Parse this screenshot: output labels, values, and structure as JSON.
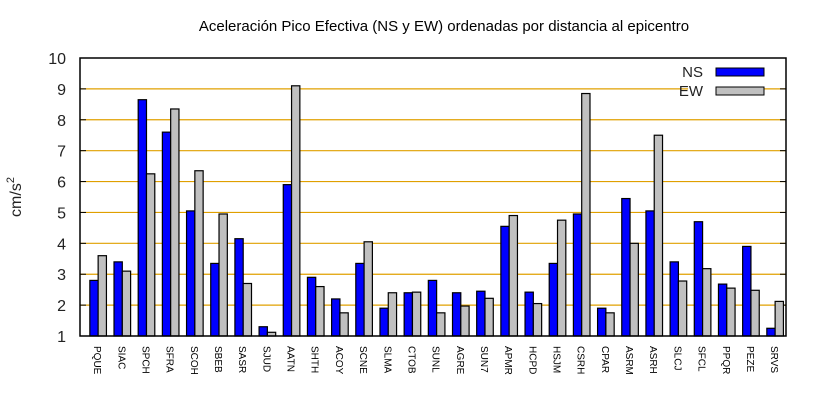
{
  "chart_data": {
    "type": "bar",
    "title": "Aceleración Pico Efectiva (NS y EW) ordenadas por distancia al epicentro",
    "xlabel": "",
    "ylabel": "cm/s",
    "ylabel_superscript": "2",
    "ylim": [
      1,
      10
    ],
    "yticks": [
      "1",
      "2",
      "3",
      "4",
      "5",
      "6",
      "7",
      "8",
      "9",
      "10"
    ],
    "grid": true,
    "legend_position": "top-right",
    "categories": [
      "PQUE",
      "SIAC",
      "SPCH",
      "SFRA",
      "SCOH",
      "SBEB",
      "SASR",
      "SJUD",
      "AATN",
      "SHTH",
      "ACOY",
      "SCNE",
      "SLMA",
      "CTOB",
      "SUNL",
      "AGRE",
      "SUN7",
      "APMR",
      "HCPD",
      "HSJM",
      "CSRH",
      "CPAR",
      "ASRM",
      "ASRH",
      "SLCJ",
      "SFCL",
      "PPQR",
      "PEZE",
      "SRVS"
    ],
    "series": [
      {
        "name": "NS",
        "color": "#0000ff",
        "values": [
          2.8,
          3.4,
          8.65,
          7.6,
          5.05,
          3.35,
          4.15,
          1.3,
          5.9,
          2.9,
          2.2,
          3.35,
          1.9,
          2.4,
          2.8,
          2.4,
          2.45,
          4.55,
          2.42,
          3.35,
          4.95,
          1.9,
          5.45,
          5.05,
          3.4,
          4.7,
          2.68,
          3.9,
          1.25
        ]
      },
      {
        "name": "EW",
        "color": "#c0c0c0",
        "values": [
          3.6,
          3.1,
          6.25,
          8.35,
          6.35,
          4.95,
          2.7,
          1.12,
          9.1,
          2.6,
          1.75,
          4.05,
          2.4,
          2.42,
          1.75,
          1.97,
          2.22,
          4.9,
          2.05,
          4.75,
          8.85,
          1.75,
          4.0,
          7.5,
          2.78,
          3.18,
          2.55,
          2.48,
          2.12
        ]
      }
    ],
    "grid_color": "#e0a000"
  }
}
